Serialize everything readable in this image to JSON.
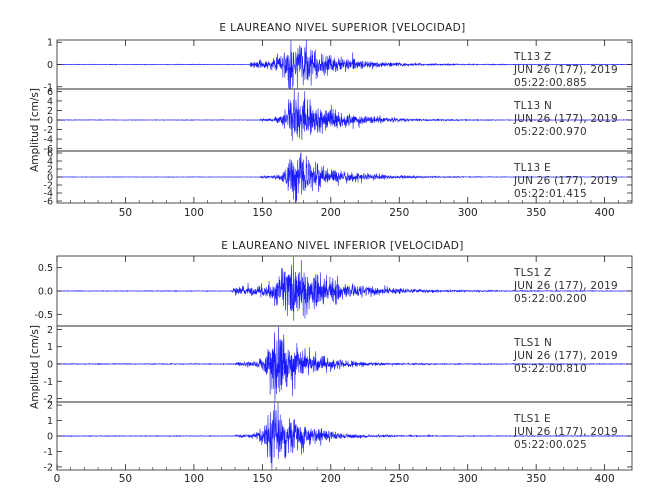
{
  "chart_data": [
    {
      "type": "line",
      "title": "E LAUREANO NIVEL SUPERIOR [VELOCIDAD]",
      "ylabel": "Amplitud [cm/s]",
      "xlim": [
        0,
        420
      ],
      "x_ticks": [
        "50",
        "100",
        "150",
        "200",
        "250",
        "300",
        "350",
        "400"
      ],
      "x_tick_values": [
        50,
        100,
        150,
        200,
        250,
        300,
        350,
        400
      ],
      "series_color": "#1a1aff",
      "panels": [
        {
          "station": "TL13",
          "component": "Z",
          "date": "JUN 26 (177), 2019",
          "time": "05:22:00.885",
          "ylim": [
            -1.1,
            1.1
          ],
          "y_ticks": [
            {
              "v": 1,
              "t": "1"
            },
            {
              "v": 0,
              "t": "0"
            },
            {
              "v": -1,
              "t": "-1"
            }
          ],
          "waveform": {
            "onset": 141,
            "peak_time": 170,
            "peak_amp": 1.05,
            "pre_amp": 0.22,
            "decay": 28,
            "noise": 0.01,
            "seed": 11
          }
        },
        {
          "station": "TL13",
          "component": "N",
          "date": "JUN 26 (177), 2019",
          "time": "05:22:00.970",
          "ylim": [
            -6.5,
            6.5
          ],
          "y_ticks": [
            {
              "v": 6,
              "t": "6"
            },
            {
              "v": 4,
              "t": "4"
            },
            {
              "v": 2,
              "t": "2"
            },
            {
              "v": 0,
              "t": "0"
            },
            {
              "v": -2,
              "t": "-2"
            },
            {
              "v": -4,
              "t": "-4"
            },
            {
              "v": -6,
              "t": "-6"
            }
          ],
          "waveform": {
            "onset": 148,
            "peak_time": 172,
            "peak_amp": 5.8,
            "pre_amp": 0.4,
            "decay": 26,
            "noise": 0.05,
            "seed": 23
          }
        },
        {
          "station": "TL13",
          "component": "E",
          "date": "JUN 26 (177), 2019",
          "time": "05:22:01.415",
          "ylim": [
            -6.5,
            6.5
          ],
          "y_ticks": [
            {
              "v": 6,
              "t": "6"
            },
            {
              "v": 4,
              "t": "4"
            },
            {
              "v": 2,
              "t": "2"
            },
            {
              "v": 0,
              "t": "0"
            },
            {
              "v": -2,
              "t": "-2"
            },
            {
              "v": -4,
              "t": "-4"
            },
            {
              "v": -6,
              "t": "-6"
            }
          ],
          "waveform": {
            "onset": 148,
            "peak_time": 171,
            "peak_amp": 6.0,
            "pre_amp": 0.4,
            "decay": 26,
            "noise": 0.05,
            "seed": 37
          }
        }
      ]
    },
    {
      "type": "line",
      "title": "E LAUREANO NIVEL INFERIOR [VELOCIDAD]",
      "ylabel": "Amplitud [cm/s]",
      "xlim": [
        0,
        420
      ],
      "x_ticks": [
        "0",
        "50",
        "100",
        "150",
        "200",
        "250",
        "300",
        "350",
        "400"
      ],
      "x_tick_values": [
        0,
        50,
        100,
        150,
        200,
        250,
        300,
        350,
        400
      ],
      "series_color": "#1a1aff",
      "panels": [
        {
          "station": "TLS1",
          "component": "Z",
          "date": "JUN 26 (177), 2019",
          "time": "05:22:00.200",
          "ylim": [
            -0.75,
            0.75
          ],
          "y_ticks": [
            {
              "v": 0.5,
              "t": "0.5"
            },
            {
              "v": 0,
              "t": "0.0"
            },
            {
              "v": -0.5,
              "t": "-0.5"
            }
          ],
          "waveform": {
            "onset": 128,
            "peak_time": 168,
            "peak_amp": 0.72,
            "pre_amp": 0.12,
            "decay": 30,
            "noise": 0.006,
            "seed": 51
          }
        },
        {
          "station": "TLS1",
          "component": "N",
          "date": "JUN 26 (177), 2019",
          "time": "05:22:00.810",
          "ylim": [
            -2.2,
            2.2
          ],
          "y_ticks": [
            {
              "v": 2,
              "t": "2"
            },
            {
              "v": 1,
              "t": "1"
            },
            {
              "v": 0,
              "t": "0"
            },
            {
              "v": -1,
              "t": "-1"
            },
            {
              "v": -2,
              "t": "-2"
            }
          ],
          "waveform": {
            "onset": 130,
            "peak_time": 158,
            "peak_amp": 2.0,
            "pre_amp": 0.15,
            "decay": 22,
            "noise": 0.02,
            "seed": 67
          }
        },
        {
          "station": "TLS1",
          "component": "E",
          "date": "JUN 26 (177), 2019",
          "time": "05:22:00.025",
          "ylim": [
            -2.2,
            2.2
          ],
          "y_ticks": [
            {
              "v": 2,
              "t": "2"
            },
            {
              "v": 1,
              "t": "1"
            },
            {
              "v": 0,
              "t": "0"
            },
            {
              "v": -1,
              "t": "-1"
            },
            {
              "v": -2,
              "t": "-2"
            }
          ],
          "waveform": {
            "onset": 130,
            "peak_time": 157,
            "peak_amp": 2.1,
            "pre_amp": 0.12,
            "decay": 20,
            "noise": 0.02,
            "seed": 79
          }
        }
      ]
    }
  ]
}
